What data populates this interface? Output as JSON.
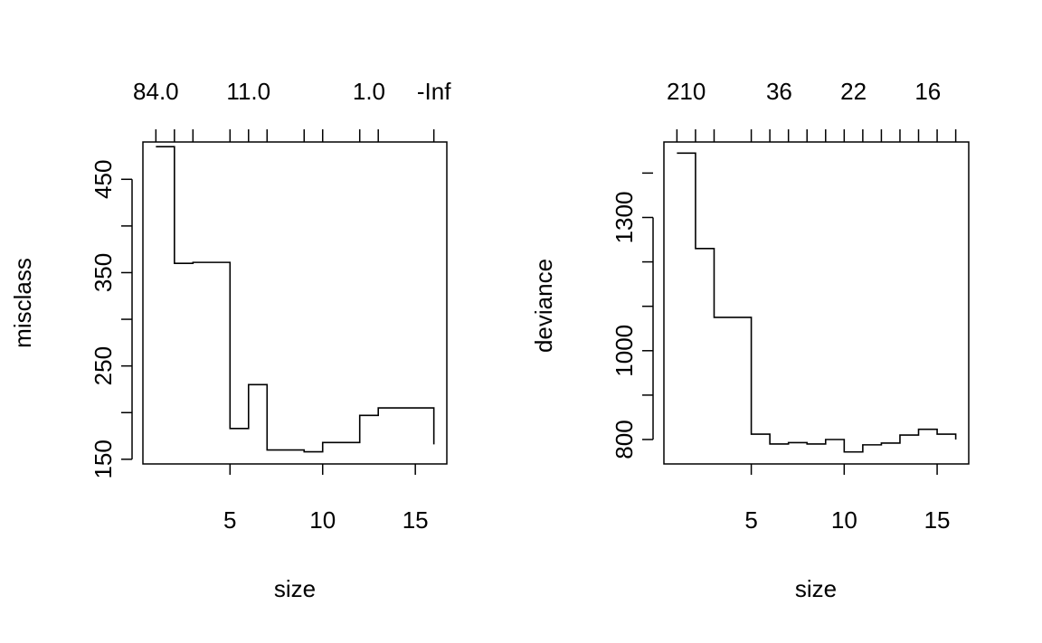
{
  "chart_data": [
    {
      "type": "line",
      "step": true,
      "title": "",
      "xlabel": "size",
      "ylabel": "misclass",
      "xlim": [
        0.3,
        16.7
      ],
      "ylim": [
        145,
        490
      ],
      "x_ticks": [
        5,
        10,
        15
      ],
      "y_ticks": [
        150,
        250,
        350,
        450
      ],
      "y_minor_ticks": [
        200,
        300,
        400
      ],
      "top_axis": {
        "tick_positions": [
          1,
          2,
          3,
          5,
          6,
          7,
          9,
          10,
          12,
          13,
          16
        ],
        "labels": [
          {
            "x": 1,
            "text": "84.0"
          },
          {
            "x": 6,
            "text": "11.0"
          },
          {
            "x": 12.5,
            "text": "1.0"
          },
          {
            "x": 16,
            "text": "-Inf"
          }
        ]
      },
      "series": [
        {
          "x": [
            1,
            2,
            3,
            5,
            6,
            7,
            9,
            10,
            12,
            13,
            16
          ],
          "values": [
            485,
            360,
            361,
            183,
            230,
            160,
            158,
            168,
            197,
            205,
            166
          ]
        }
      ]
    },
    {
      "type": "line",
      "step": true,
      "title": "",
      "xlabel": "size",
      "ylabel": "deviance",
      "xlim": [
        0.3,
        16.7
      ],
      "ylim": [
        745,
        1470
      ],
      "x_ticks": [
        5,
        10,
        15
      ],
      "y_ticks": [
        800,
        1000,
        1300
      ],
      "y_minor_ticks": [
        900,
        1100,
        1200,
        1400
      ],
      "top_axis": {
        "tick_positions": [
          1,
          2,
          3,
          5,
          6,
          7,
          8,
          9,
          10,
          11,
          12,
          13,
          14,
          15,
          16
        ],
        "labels": [
          {
            "x": 1.5,
            "text": "210"
          },
          {
            "x": 6.5,
            "text": "36"
          },
          {
            "x": 10.5,
            "text": "22"
          },
          {
            "x": 14.5,
            "text": "16"
          }
        ]
      },
      "series": [
        {
          "x": [
            1,
            2,
            3,
            5,
            6,
            7,
            8,
            9,
            10,
            11,
            12,
            13,
            14,
            15,
            16
          ],
          "values": [
            1445,
            1230,
            1075,
            812,
            790,
            793,
            790,
            800,
            772,
            788,
            792,
            810,
            823,
            812,
            800
          ]
        }
      ]
    }
  ]
}
